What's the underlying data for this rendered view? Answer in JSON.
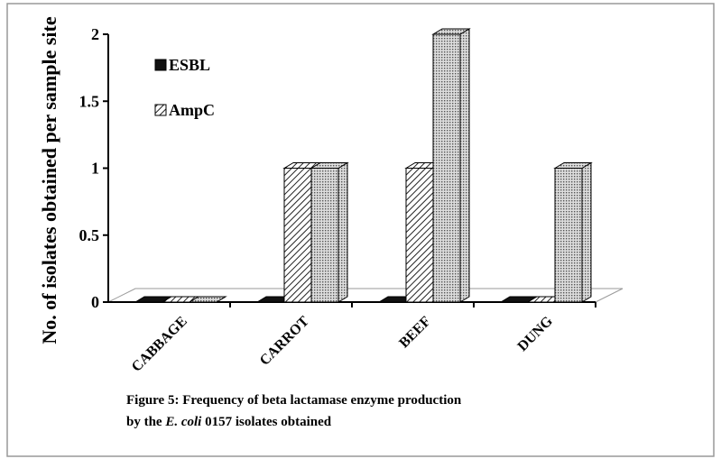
{
  "chart_data": {
    "type": "bar3d",
    "y_label": "No. of isolates obtained per sample site",
    "categories": [
      "CABBAGE",
      "CARROT",
      "BEEF",
      "DUNG"
    ],
    "series": [
      {
        "name": "ESBL",
        "color": "#111111",
        "pattern": "solid",
        "values": [
          0,
          0,
          0,
          0
        ]
      },
      {
        "name": "AmpC",
        "color": "#222222",
        "pattern": "diagonal",
        "values": [
          0,
          1,
          1,
          0
        ]
      },
      {
        "color": "#555555",
        "pattern": "dots",
        "values": [
          0,
          1,
          2,
          1
        ]
      }
    ],
    "ylim": [
      0,
      2
    ],
    "yticks": [
      0,
      0.5,
      1,
      1.5,
      2
    ],
    "legend": "upper left",
    "caption": {
      "line1": "Figure 5: Frequency of beta lactamase enzyme production",
      "prefix": "by the ",
      "italic": "E. coli",
      "suffix": " 0157 isolates obtained"
    }
  }
}
